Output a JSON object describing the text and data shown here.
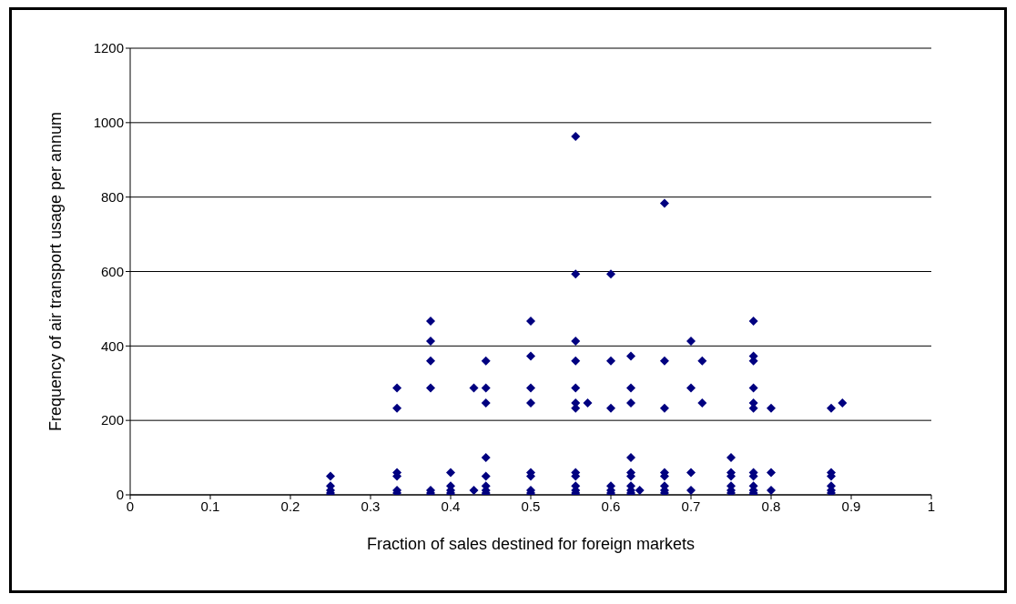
{
  "chart_data": {
    "type": "scatter",
    "xlabel": "Fraction of sales destined for foreign markets",
    "ylabel": "Frequency of air transport usage per annum",
    "x": [
      0.25,
      0.25,
      0.25,
      0.25,
      0.25,
      0.333,
      0.333,
      0.333,
      0.333,
      0.333,
      0.333,
      0.375,
      0.375,
      0.375,
      0.375,
      0.375,
      0.375,
      0.375,
      0.4,
      0.4,
      0.4,
      0.4,
      0.4,
      0.429,
      0.429,
      0.444,
      0.444,
      0.444,
      0.444,
      0.444,
      0.444,
      0.444,
      0.444,
      0.444,
      0.5,
      0.5,
      0.5,
      0.5,
      0.5,
      0.5,
      0.5,
      0.5,
      0.5,
      0.556,
      0.556,
      0.556,
      0.556,
      0.556,
      0.556,
      0.556,
      0.556,
      0.556,
      0.556,
      0.556,
      0.556,
      0.556,
      0.571,
      0.6,
      0.6,
      0.6,
      0.6,
      0.6,
      0.6,
      0.6,
      0.625,
      0.625,
      0.625,
      0.625,
      0.625,
      0.625,
      0.625,
      0.625,
      0.625,
      0.625,
      0.636,
      0.667,
      0.667,
      0.667,
      0.667,
      0.667,
      0.667,
      0.667,
      0.667,
      0.7,
      0.7,
      0.7,
      0.7,
      0.714,
      0.714,
      0.75,
      0.75,
      0.75,
      0.75,
      0.75,
      0.75,
      0.778,
      0.778,
      0.778,
      0.778,
      0.778,
      0.778,
      0.778,
      0.778,
      0.778,
      0.778,
      0.778,
      0.778,
      0.8,
      0.8,
      0.8,
      0.875,
      0.875,
      0.875,
      0.875,
      0.875,
      0.875,
      0.889
    ],
    "series": [
      {
        "color": "#000080",
        "values": [
          50,
          24,
          12,
          5,
          0,
          287,
          233,
          60,
          50,
          12,
          5,
          467,
          413,
          360,
          287,
          12,
          5,
          0,
          60,
          24,
          12,
          5,
          0,
          287,
          12,
          360,
          287,
          247,
          100,
          50,
          24,
          12,
          5,
          0,
          467,
          373,
          287,
          247,
          60,
          50,
          12,
          5,
          0,
          963,
          593,
          413,
          360,
          287,
          247,
          233,
          60,
          50,
          24,
          12,
          5,
          0,
          247,
          593,
          360,
          233,
          24,
          12,
          5,
          0,
          373,
          287,
          247,
          100,
          60,
          50,
          24,
          12,
          5,
          0,
          12,
          783,
          360,
          233,
          60,
          50,
          24,
          12,
          5,
          413,
          287,
          60,
          12,
          360,
          247,
          100,
          60,
          50,
          24,
          12,
          5,
          467,
          373,
          360,
          287,
          247,
          233,
          60,
          50,
          24,
          12,
          5,
          0,
          233,
          60,
          12,
          233,
          60,
          50,
          24,
          12,
          5,
          247
        ]
      }
    ],
    "xlim": [
      0,
      1
    ],
    "xticks": [
      0,
      0.1,
      0.2,
      0.3,
      0.4,
      0.5,
      0.6,
      0.7,
      0.8,
      0.9,
      1
    ],
    "ylim": [
      0,
      1200
    ],
    "yticks": [
      0,
      200,
      400,
      600,
      800,
      1000,
      1200
    ],
    "grid": "y",
    "legend": false,
    "marker": "diamond"
  }
}
